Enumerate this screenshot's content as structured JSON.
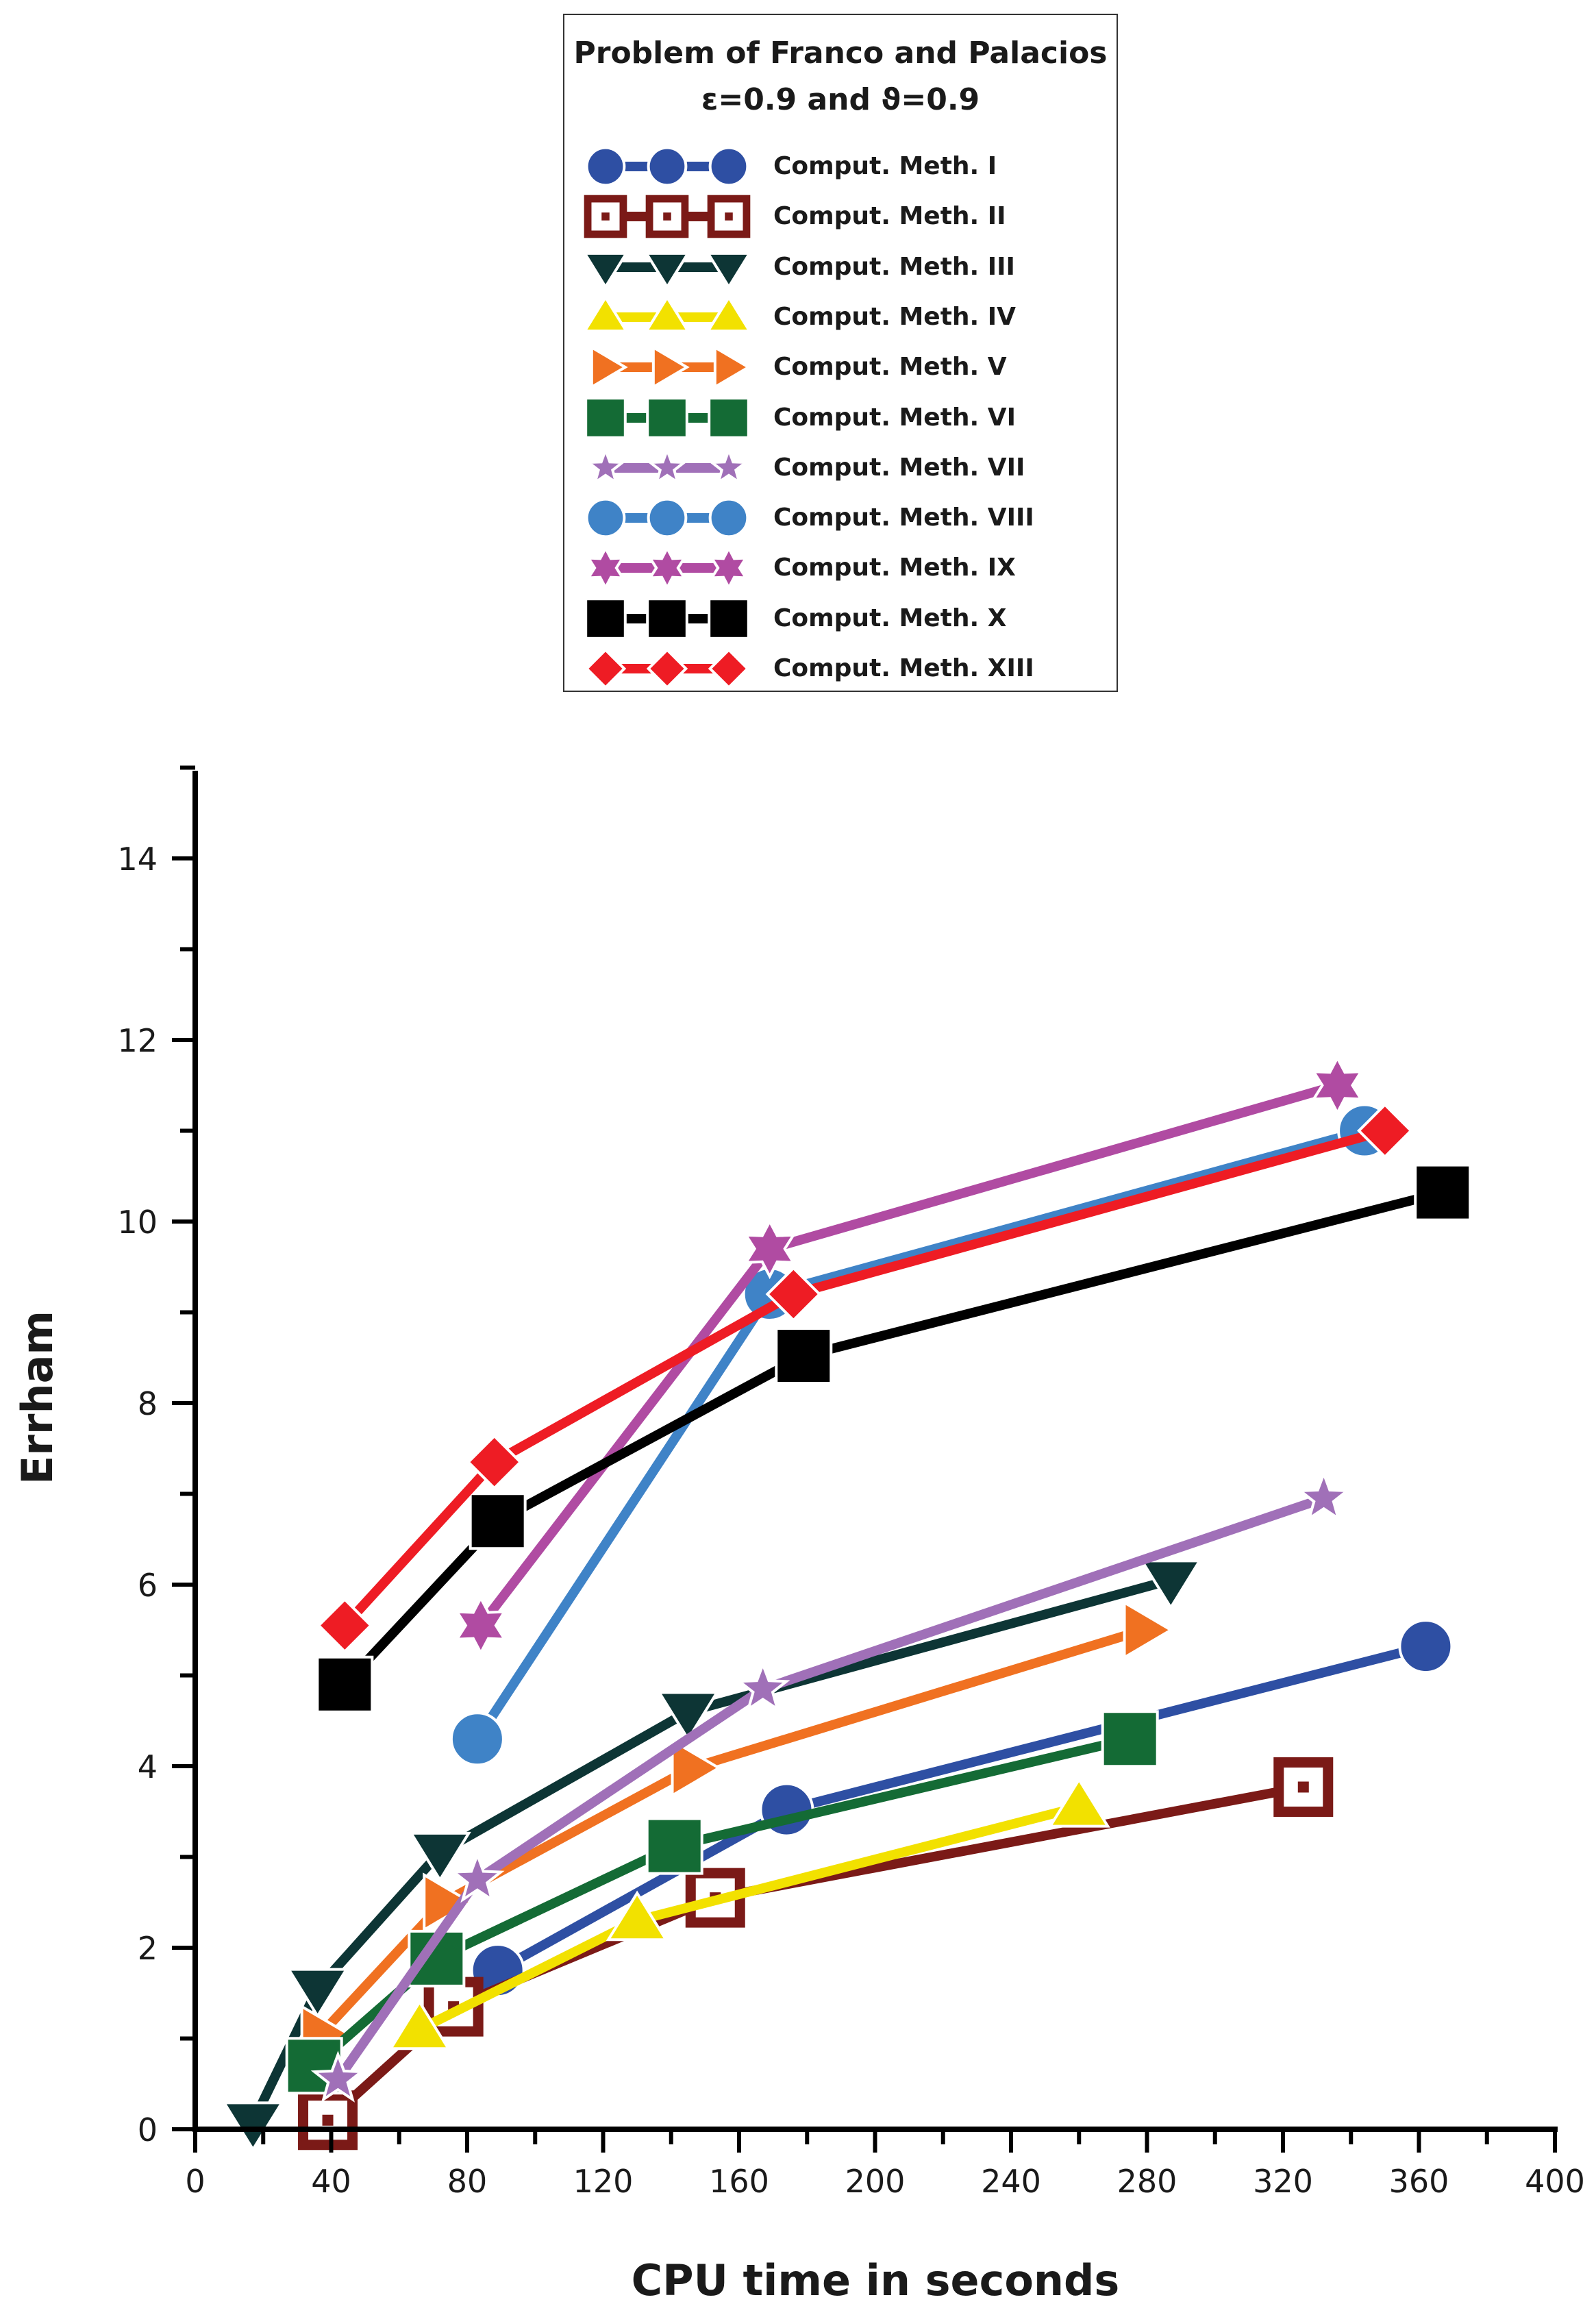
{
  "chart_data": {
    "type": "line",
    "title": "Problem of Franco and Palacios",
    "subtitle": "ε=0.9 and ϑ=0.9",
    "xlabel": "CPU time in seconds",
    "ylabel": "Errham",
    "xlim": [
      0,
      400
    ],
    "ylim": [
      0,
      15
    ],
    "xticks": [
      0,
      40,
      80,
      120,
      160,
      200,
      240,
      280,
      320,
      360,
      400
    ],
    "yticks": [
      0,
      2,
      4,
      6,
      8,
      10,
      12,
      14
    ],
    "legend_position": "top-center",
    "series": [
      {
        "name": "Comput. Meth. I",
        "color": "#2E4FA3",
        "marker": "circle",
        "x": [
          89,
          174,
          362
        ],
        "y": [
          1.75,
          3.52,
          5.32
        ]
      },
      {
        "name": "Comput. Meth. II",
        "color": "#7B1A17",
        "marker": "hollow-square",
        "x": [
          39,
          76,
          153,
          326
        ],
        "y": [
          0.1,
          1.35,
          2.55,
          3.77
        ]
      },
      {
        "name": "Comput. Meth. III",
        "color": "#0D3535",
        "marker": "triangle-down",
        "x": [
          17,
          36,
          72,
          145,
          287
        ],
        "y": [
          0.08,
          1.55,
          3.05,
          4.6,
          6.05
        ]
      },
      {
        "name": "Comput. Meth. IV",
        "color": "#F2E100",
        "marker": "triangle-up",
        "x": [
          66,
          130,
          260
        ],
        "y": [
          1.1,
          2.3,
          3.55
        ]
      },
      {
        "name": "Comput. Meth. V",
        "color": "#F07121",
        "marker": "triangle-right",
        "x": [
          37,
          73,
          146,
          279
        ],
        "y": [
          1.05,
          2.5,
          3.98,
          5.5
        ]
      },
      {
        "name": "Comput. Meth. VI",
        "color": "#146B35",
        "marker": "square",
        "x": [
          35,
          71,
          141,
          275
        ],
        "y": [
          0.7,
          1.88,
          3.12,
          4.3
        ]
      },
      {
        "name": "Comput. Meth. VII",
        "color": "#A070B8",
        "marker": "star-5",
        "x": [
          42,
          83,
          167,
          332
        ],
        "y": [
          0.55,
          2.75,
          4.85,
          6.95
        ]
      },
      {
        "name": "Comput. Meth. VIII",
        "color": "#3F83C7",
        "marker": "circle",
        "x": [
          83,
          169,
          344
        ],
        "y": [
          4.3,
          9.2,
          11.0
        ]
      },
      {
        "name": "Comput. Meth. IX",
        "color": "#B04BA2",
        "marker": "star-6",
        "x": [
          84,
          169,
          336
        ],
        "y": [
          5.55,
          9.7,
          11.5
        ]
      },
      {
        "name": "Comput. Meth. X",
        "color": "#000000",
        "marker": "square",
        "x": [
          44,
          89,
          179,
          367
        ],
        "y": [
          4.9,
          6.7,
          8.52,
          10.32
        ]
      },
      {
        "name": "Comput. Meth. XIII",
        "color": "#EE1C24",
        "marker": "diamond",
        "x": [
          44,
          88,
          176,
          350
        ],
        "y": [
          5.55,
          7.35,
          9.2,
          11.0
        ]
      }
    ]
  }
}
